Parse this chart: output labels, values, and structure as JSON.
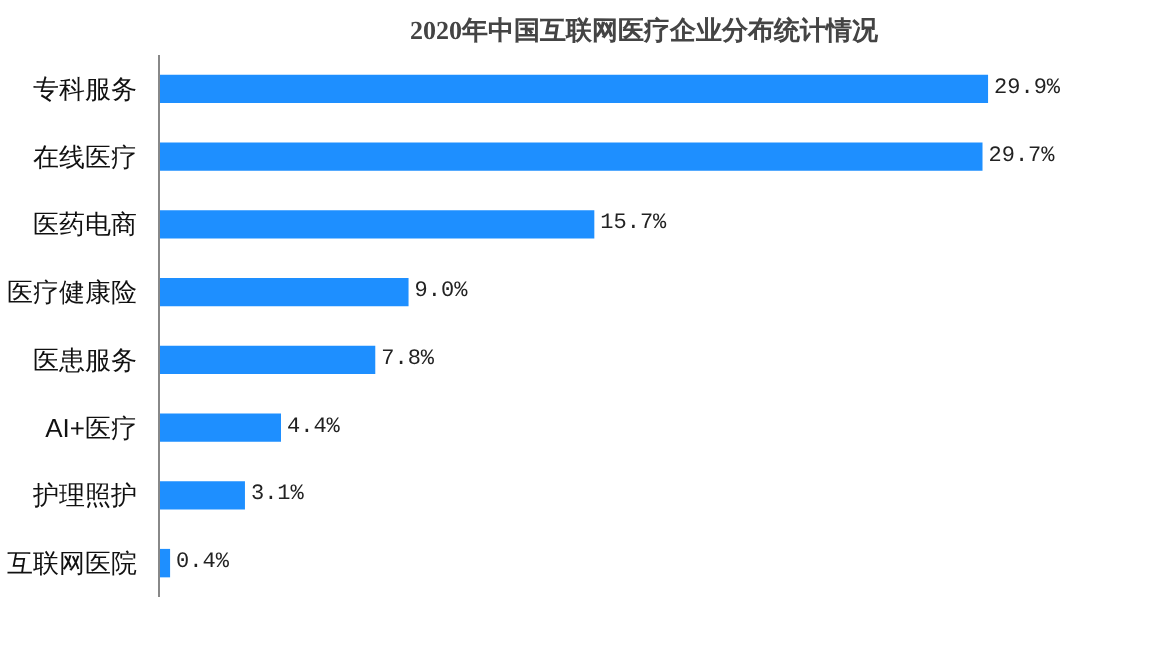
{
  "chart_data": {
    "type": "bar",
    "orientation": "horizontal",
    "title": "2020年中国互联网医疗企业分布统计情况",
    "categories": [
      "专科服务",
      "在线医疗",
      "医药电商",
      "医疗健康险",
      "医患服务",
      "AI+医疗",
      "护理照护",
      "互联网医院"
    ],
    "values": [
      29.9,
      29.7,
      15.7,
      9.0,
      7.8,
      4.4,
      3.1,
      0.4
    ],
    "value_labels": [
      "29.9%",
      "29.7%",
      "15.7%",
      "9.0%",
      "7.8%",
      "4.4%",
      "3.1%",
      "0.4%"
    ],
    "color": "#1e8fff",
    "grid": false,
    "tick_labels": "y"
  }
}
